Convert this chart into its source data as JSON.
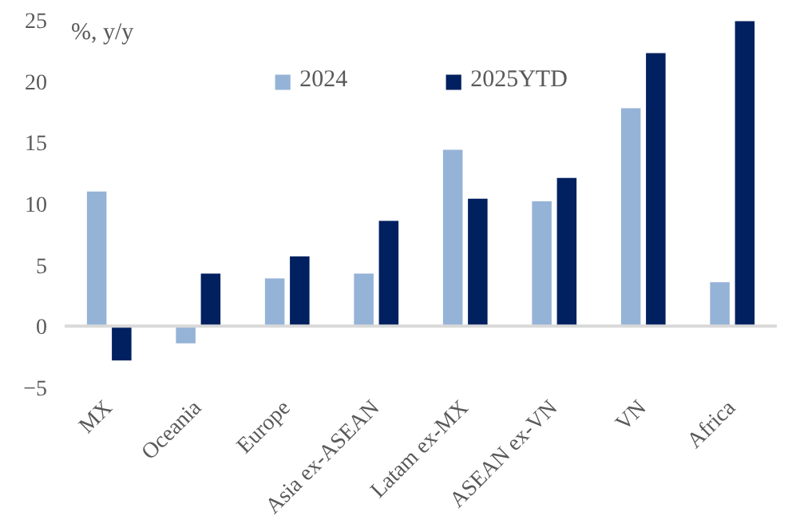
{
  "chart_data": {
    "type": "bar",
    "ylabel": "%, y/y",
    "categories": [
      "MX",
      "Oceania",
      "Europe",
      "Asia ex-ASEAN",
      "Latam ex-MX",
      "ASEAN ex-VN",
      "VN",
      "Africa"
    ],
    "series": [
      {
        "name": "2024",
        "color": "#95b3d7",
        "values": [
          11.0,
          -1.4,
          3.9,
          4.3,
          14.4,
          10.2,
          17.8,
          3.6
        ]
      },
      {
        "name": "2025YTD",
        "color": "#002060",
        "values": [
          -2.8,
          4.3,
          5.7,
          8.6,
          10.4,
          12.1,
          22.3,
          24.9
        ]
      }
    ],
    "ylim": [
      -5,
      25
    ],
    "yticks": [
      -5,
      0,
      5,
      10,
      15,
      20,
      25
    ],
    "grid": false,
    "legend": "top",
    "ref_lines": [
      {
        "axis": "y",
        "value": 0,
        "color": "#d9d9d9"
      }
    ]
  }
}
